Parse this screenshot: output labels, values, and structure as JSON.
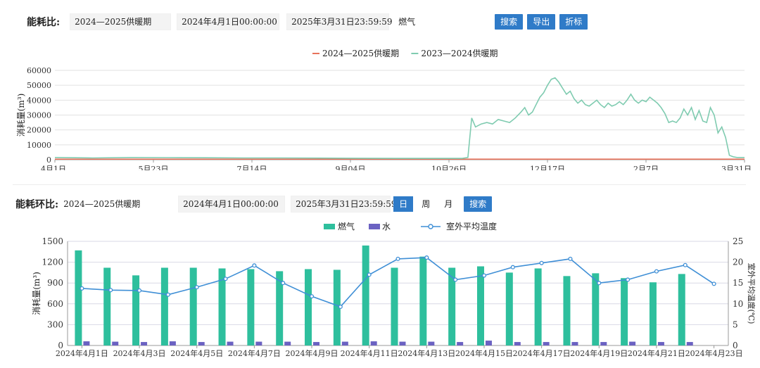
{
  "panel1": {
    "label": "能耗比:",
    "period": "2024—2025供暖期",
    "start": "2024年4月1日00:00:00",
    "end": "2025年3月31日23:59:59",
    "energy_type": "燃气",
    "buttons": [
      "搜索",
      "导出",
      "折标"
    ]
  },
  "panel2": {
    "label": "能耗环比:",
    "period": "2024—2025供暖期",
    "start": "2024年4月1日00:00:00",
    "end": "2025年3月31日23:59:59",
    "toggles": [
      "日",
      "周",
      "月"
    ],
    "active_toggle": "日",
    "search_label": "搜索"
  },
  "chart_data": [
    {
      "type": "line",
      "legend": [
        "2024—2025供暖期",
        "2023—2024供暖期"
      ],
      "legend_position": "top-center",
      "colors": [
        "#e8735c",
        "#7fcbb0"
      ],
      "ylabel": "消耗量(m³)",
      "ylim": [
        0,
        60000
      ],
      "yticks": [
        0,
        10000,
        20000,
        30000,
        40000,
        50000,
        60000
      ],
      "xticks": [
        {
          "day": 0,
          "label": "4月1日"
        },
        {
          "day": 52,
          "label": "5月23日"
        },
        {
          "day": 104,
          "label": "7月14日"
        },
        {
          "day": 156,
          "label": "9月04日"
        },
        {
          "day": 208,
          "label": "10月26日"
        },
        {
          "day": 260,
          "label": "12月17日"
        },
        {
          "day": 312,
          "label": "2月7日"
        },
        {
          "day": 364,
          "label": "3月31日"
        }
      ],
      "grid": true,
      "series": [
        {
          "name": "2024—2025供暖期",
          "points": [
            [
              0,
              400
            ],
            [
              364,
              400
            ]
          ]
        },
        {
          "name": "2023—2024供暖期",
          "points": [
            [
              0,
              1500
            ],
            [
              20,
              1200
            ],
            [
              40,
              1500
            ],
            [
              60,
              1400
            ],
            [
              80,
              1300
            ],
            [
              100,
              1200
            ],
            [
              120,
              1200
            ],
            [
              140,
              1100
            ],
            [
              160,
              1000
            ],
            [
              180,
              900
            ],
            [
              200,
              900
            ],
            [
              215,
              900
            ],
            [
              218,
              1500
            ],
            [
              220,
              28000
            ],
            [
              222,
              22000
            ],
            [
              225,
              24000
            ],
            [
              228,
              25000
            ],
            [
              231,
              24000
            ],
            [
              234,
              27000
            ],
            [
              237,
              26000
            ],
            [
              240,
              25000
            ],
            [
              243,
              28000
            ],
            [
              246,
              32000
            ],
            [
              248,
              35000
            ],
            [
              250,
              30000
            ],
            [
              252,
              32000
            ],
            [
              254,
              37000
            ],
            [
              256,
              42000
            ],
            [
              258,
              45000
            ],
            [
              260,
              50000
            ],
            [
              262,
              54000
            ],
            [
              264,
              55000
            ],
            [
              266,
              52000
            ],
            [
              268,
              48000
            ],
            [
              270,
              44000
            ],
            [
              272,
              46000
            ],
            [
              274,
              41000
            ],
            [
              276,
              38000
            ],
            [
              278,
              40000
            ],
            [
              280,
              37000
            ],
            [
              282,
              36000
            ],
            [
              284,
              38000
            ],
            [
              286,
              40000
            ],
            [
              288,
              37000
            ],
            [
              290,
              35000
            ],
            [
              292,
              38000
            ],
            [
              294,
              36000
            ],
            [
              296,
              37000
            ],
            [
              298,
              39000
            ],
            [
              300,
              37000
            ],
            [
              302,
              40000
            ],
            [
              304,
              44000
            ],
            [
              306,
              40000
            ],
            [
              308,
              38000
            ],
            [
              310,
              40000
            ],
            [
              312,
              39000
            ],
            [
              314,
              42000
            ],
            [
              316,
              40000
            ],
            [
              318,
              38000
            ],
            [
              320,
              35000
            ],
            [
              322,
              31000
            ],
            [
              324,
              25000
            ],
            [
              326,
              26000
            ],
            [
              328,
              25000
            ],
            [
              330,
              28000
            ],
            [
              332,
              34000
            ],
            [
              334,
              30000
            ],
            [
              336,
              35000
            ],
            [
              338,
              27000
            ],
            [
              340,
              33000
            ],
            [
              342,
              26000
            ],
            [
              344,
              25000
            ],
            [
              346,
              35000
            ],
            [
              348,
              30000
            ],
            [
              350,
              18000
            ],
            [
              352,
              22000
            ],
            [
              354,
              15000
            ],
            [
              356,
              3000
            ],
            [
              358,
              2000
            ],
            [
              360,
              1500
            ],
            [
              364,
              1500
            ]
          ]
        }
      ]
    },
    {
      "type": "bar",
      "legend": [
        "燃气",
        "水",
        "室外平均温度"
      ],
      "legend_position": "top-center",
      "colors": {
        "gas": "#2ebf9d",
        "water": "#6b62c2",
        "temp": "#3f8fd6"
      },
      "ylabel": "消耗量(m³)",
      "y2label": "室外平均温度(℃)",
      "ylim": [
        0,
        1500
      ],
      "yticks": [
        0,
        300,
        600,
        900,
        1200,
        1500
      ],
      "y2lim": [
        0,
        25
      ],
      "y2ticks": [
        0,
        5,
        10,
        15,
        20,
        25
      ],
      "grid": true,
      "categories": [
        "2024年4月1日",
        "2024年4月2日",
        "2024年4月3日",
        "2024年4月4日",
        "2024年4月5日",
        "2024年4月6日",
        "2024年4月7日",
        "2024年4月8日",
        "2024年4月9日",
        "2024年4月10日",
        "2024年4月11日",
        "2024年4月12日",
        "2024年4月13日",
        "2024年4月14日",
        "2024年4月15日",
        "2024年4月16日",
        "2024年4月17日",
        "2024年4月18日",
        "2024年4月19日",
        "2024年4月20日",
        "2024年4月21日",
        "2024年4月22日",
        "2024年4月23日"
      ],
      "xtick_labels": [
        "2024年4月1日",
        "2024年4月3日",
        "2024年4月5日",
        "2024年4月7日",
        "2024年4月9日",
        "2024年4月11日",
        "2024年4月13日",
        "2024年4月15日",
        "2024年4月17日",
        "2024年4月19日",
        "2024年4月21日",
        "2024年4月23日"
      ],
      "series": [
        {
          "name": "燃气",
          "values": [
            1370,
            1120,
            1010,
            1120,
            1120,
            1110,
            1100,
            1070,
            1100,
            1090,
            1440,
            1120,
            1280,
            1120,
            1140,
            1050,
            1110,
            1000,
            1040,
            970,
            910,
            1030,
            null
          ]
        },
        {
          "name": "水",
          "values": [
            60,
            55,
            50,
            60,
            50,
            55,
            55,
            55,
            50,
            55,
            60,
            55,
            55,
            50,
            70,
            50,
            50,
            50,
            50,
            55,
            50,
            50,
            null
          ]
        },
        {
          "name": "室外平均温度",
          "values": [
            13.7,
            13.3,
            13.2,
            12.2,
            14.0,
            16.0,
            19.2,
            15.0,
            11.8,
            9.3,
            17.0,
            20.8,
            21.1,
            15.8,
            16.8,
            18.8,
            19.8,
            20.8,
            15.0,
            15.8,
            17.8,
            19.3,
            14.8
          ]
        }
      ]
    }
  ]
}
